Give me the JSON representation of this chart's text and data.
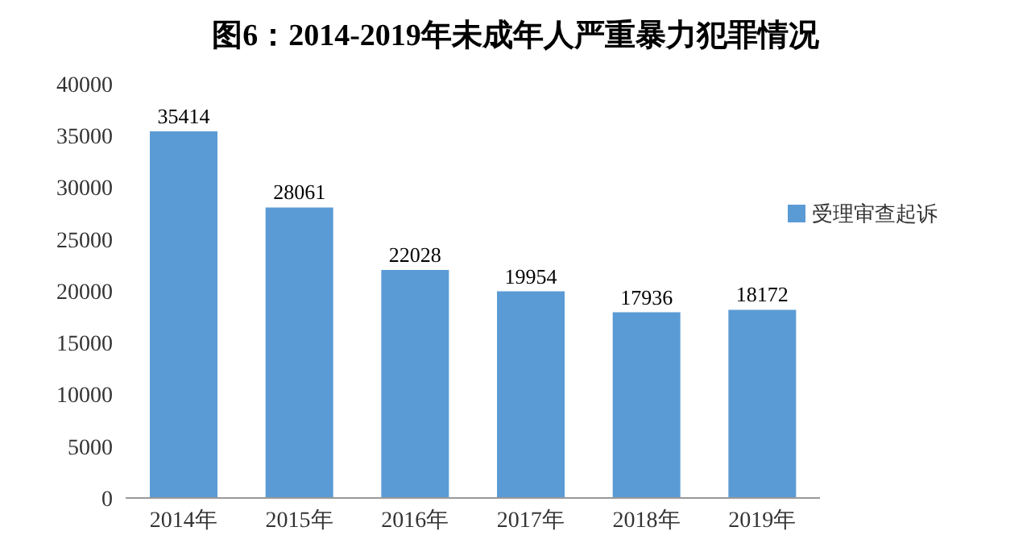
{
  "chart_data": {
    "type": "bar",
    "title": "图6：2014-2019年未成年人严重暴力犯罪情况",
    "categories": [
      "2014年",
      "2015年",
      "2016年",
      "2017年",
      "2018年",
      "2019年"
    ],
    "series": [
      {
        "name": "受理审查起诉",
        "color": "#5b9bd5",
        "values": [
          35414,
          28061,
          22028,
          19954,
          17936,
          18172
        ]
      }
    ],
    "ylim": [
      0,
      40000
    ],
    "yticks": [
      0,
      5000,
      10000,
      15000,
      20000,
      25000,
      30000,
      35000,
      40000
    ],
    "grid": false,
    "legend": "top right",
    "data_labels": true
  }
}
